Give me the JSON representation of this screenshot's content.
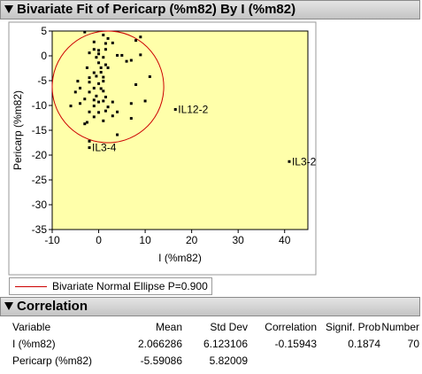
{
  "fit_header": {
    "title": "Bivariate Fit of Pericarp (%m82) By I (%m82)"
  },
  "corr_header": {
    "title": "Correlation"
  },
  "legend": {
    "label": "Bivariate Normal Ellipse P=0.900",
    "color": "#cc0000"
  },
  "correlation_table": {
    "columns": [
      "Variable",
      "Mean",
      "Std Dev",
      "Correlation",
      "Signif. Prob",
      "Number"
    ],
    "rows": [
      [
        "I (%m82)",
        "2.066286",
        "6.123106",
        "-0.15943",
        "0.1874",
        "70"
      ],
      [
        "Pericarp (%m82)",
        "-5.59086",
        "5.82009",
        "",
        "",
        ""
      ]
    ]
  },
  "colors": {
    "plot_background": "#ffffaa",
    "ellipse": "#cc0000",
    "points": "#000000",
    "header": "#cfcfcf"
  },
  "chart_data": {
    "type": "scatter",
    "xlabel": "I (%m82)",
    "ylabel": "Pericarp (%m82)",
    "xlim": [
      -10,
      45
    ],
    "ylim": [
      -35,
      5
    ],
    "xticks": [
      -10,
      0,
      10,
      20,
      30,
      40
    ],
    "yticks": [
      5,
      0,
      -5,
      -10,
      -15,
      -20,
      -25,
      -30,
      -35
    ],
    "grid": false,
    "legend_position": "bottom-left",
    "ellipse": {
      "p": 0.9,
      "x_range": [
        -10,
        14
      ],
      "y_range": [
        -17.5,
        5
      ]
    },
    "labeled_points": [
      {
        "label": "IL12-2",
        "x": 16.5,
        "y": -10.8
      },
      {
        "label": "IL3-2",
        "x": 41,
        "y": -21.3
      },
      {
        "label": "IL3-4",
        "x": -2,
        "y": -18.5
      }
    ],
    "points": [
      [
        -3,
        4.8
      ],
      [
        1,
        4.2
      ],
      [
        2,
        3.5
      ],
      [
        9,
        3.8
      ],
      [
        8,
        3.1
      ],
      [
        -1,
        2.8
      ],
      [
        1.5,
        2.5
      ],
      [
        3,
        2.6
      ],
      [
        -1,
        1.3
      ],
      [
        0,
        1.1
      ],
      [
        1.5,
        1.3
      ],
      [
        -2,
        0.6
      ],
      [
        0,
        0.4
      ],
      [
        4,
        0.1
      ],
      [
        5,
        0.1
      ],
      [
        9,
        0.2
      ],
      [
        -0.5,
        -0.3
      ],
      [
        1,
        -0.3
      ],
      [
        6,
        -1.1
      ],
      [
        7,
        -0.9
      ],
      [
        0,
        -1.4
      ],
      [
        1.5,
        -1.8
      ],
      [
        -2.5,
        -2.4
      ],
      [
        0.5,
        -2.4
      ],
      [
        2,
        -2.4
      ],
      [
        -1,
        -3.4
      ],
      [
        0.5,
        -3.3
      ],
      [
        -0.5,
        -4.1
      ],
      [
        -2,
        -4.4
      ],
      [
        1,
        -4.3
      ],
      [
        -4.5,
        -5.1
      ],
      [
        -2,
        -5.3
      ],
      [
        0,
        -5.6
      ],
      [
        1,
        -5.1
      ],
      [
        8,
        -5.8
      ],
      [
        11,
        -4.2
      ],
      [
        -4,
        -6.5
      ],
      [
        -1,
        -6.5
      ],
      [
        0.5,
        -6.6
      ],
      [
        -5,
        -7.3
      ],
      [
        -2,
        -7.3
      ],
      [
        1,
        -7.1
      ],
      [
        -0.5,
        -8.1
      ],
      [
        1.5,
        -8.3
      ],
      [
        -3,
        -8.7
      ],
      [
        -1,
        -8.9
      ],
      [
        0,
        -9.3
      ],
      [
        -4,
        -9.6
      ],
      [
        1,
        -9.1
      ],
      [
        3,
        -9.3
      ],
      [
        7,
        -9.6
      ],
      [
        10,
        -9.1
      ],
      [
        -6,
        -10.1
      ],
      [
        -1,
        -10.1
      ],
      [
        2,
        -10.3
      ],
      [
        -2,
        -11.3
      ],
      [
        0,
        -11.4
      ],
      [
        1.5,
        -11.1
      ],
      [
        4,
        -11.3
      ],
      [
        -1,
        -12.3
      ],
      [
        3,
        -12.1
      ],
      [
        7,
        -12.6
      ],
      [
        -2.5,
        -13.4
      ],
      [
        1,
        -13.1
      ],
      [
        -3,
        -13.7
      ],
      [
        4,
        -15.9
      ],
      [
        -2,
        -17.2
      ],
      [
        16.5,
        -10.8
      ],
      [
        41,
        -21.3
      ],
      [
        -2,
        -18.5
      ]
    ]
  }
}
